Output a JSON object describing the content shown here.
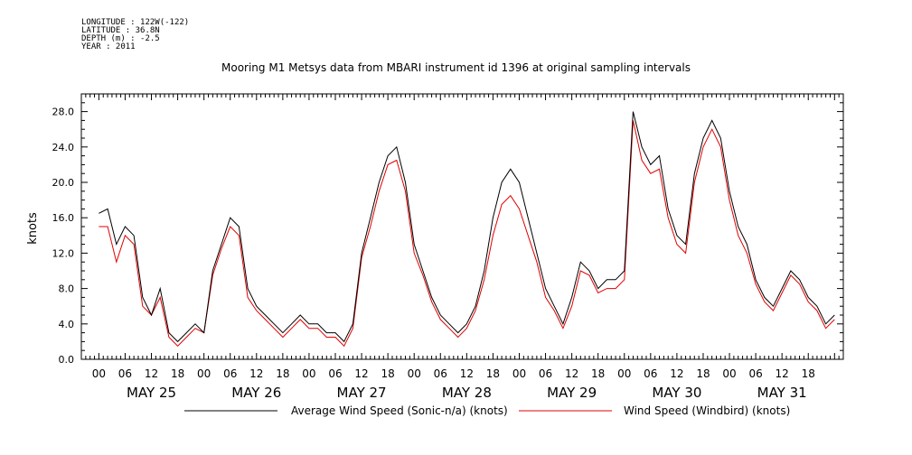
{
  "header": {
    "longitude": "LONGITUDE : 122W(-122)",
    "latitude": "LATITUDE : 36.8N",
    "depth": "DEPTH (m) : -2.5",
    "year": "YEAR : 2011",
    "title": "Mooring M1 Metsys data from MBARI instrument id 1396 at original sampling intervals"
  },
  "colors": {
    "series1": "#000000",
    "series2": "#e00000",
    "axis": "#000000"
  },
  "chart_data": {
    "type": "line",
    "title": "Mooring M1 Metsys data from MBARI instrument id 1396 at original sampling intervals",
    "ylabel": "knots",
    "xlabel": "",
    "ylim": [
      0,
      30
    ],
    "xlim_hours": [
      -4,
      170
    ],
    "grid": false,
    "legend": "bottom",
    "y_ticks": [
      "0.0",
      "4.0",
      "8.0",
      "12.0",
      "16.0",
      "20.0",
      "24.0",
      "28.0"
    ],
    "x_hour_labels": [
      "00",
      "06",
      "12",
      "18"
    ],
    "days": [
      "MAY 25",
      "MAY 26",
      "MAY 27",
      "MAY 28",
      "MAY 29",
      "MAY 30",
      "MAY 31"
    ],
    "series": [
      {
        "name": "Average Wind Speed (Sonic-n/a) (knots)",
        "points": [
          [
            0,
            16.5
          ],
          [
            2,
            17
          ],
          [
            4,
            13
          ],
          [
            6,
            15
          ],
          [
            8,
            14
          ],
          [
            10,
            7
          ],
          [
            12,
            5
          ],
          [
            14,
            8
          ],
          [
            16,
            3
          ],
          [
            18,
            2
          ],
          [
            20,
            3
          ],
          [
            22,
            4
          ],
          [
            24,
            3
          ],
          [
            26,
            10
          ],
          [
            28,
            13
          ],
          [
            30,
            16
          ],
          [
            32,
            15
          ],
          [
            34,
            8
          ],
          [
            36,
            6
          ],
          [
            38,
            5
          ],
          [
            40,
            4
          ],
          [
            42,
            3
          ],
          [
            44,
            4
          ],
          [
            46,
            5
          ],
          [
            48,
            4
          ],
          [
            50,
            4
          ],
          [
            52,
            3
          ],
          [
            54,
            3
          ],
          [
            56,
            2
          ],
          [
            58,
            4
          ],
          [
            60,
            12
          ],
          [
            62,
            16
          ],
          [
            64,
            20
          ],
          [
            66,
            23
          ],
          [
            68,
            24
          ],
          [
            70,
            20
          ],
          [
            72,
            13
          ],
          [
            74,
            10
          ],
          [
            76,
            7
          ],
          [
            78,
            5
          ],
          [
            80,
            4
          ],
          [
            82,
            3
          ],
          [
            84,
            4
          ],
          [
            86,
            6
          ],
          [
            88,
            10
          ],
          [
            90,
            16
          ],
          [
            92,
            20
          ],
          [
            94,
            21.5
          ],
          [
            96,
            20
          ],
          [
            98,
            16
          ],
          [
            100,
            12
          ],
          [
            102,
            8
          ],
          [
            104,
            6
          ],
          [
            106,
            4
          ],
          [
            108,
            7
          ],
          [
            110,
            11
          ],
          [
            112,
            10
          ],
          [
            114,
            8
          ],
          [
            116,
            9
          ],
          [
            118,
            9
          ],
          [
            120,
            10
          ],
          [
            122,
            28
          ],
          [
            124,
            24
          ],
          [
            126,
            22
          ],
          [
            128,
            23
          ],
          [
            130,
            17
          ],
          [
            132,
            14
          ],
          [
            134,
            13
          ],
          [
            136,
            21
          ],
          [
            138,
            25
          ],
          [
            140,
            27
          ],
          [
            142,
            25
          ],
          [
            144,
            19
          ],
          [
            146,
            15
          ],
          [
            148,
            13
          ],
          [
            150,
            9
          ],
          [
            152,
            7
          ],
          [
            154,
            6
          ],
          [
            156,
            8
          ],
          [
            158,
            10
          ],
          [
            160,
            9
          ],
          [
            162,
            7
          ],
          [
            164,
            6
          ],
          [
            166,
            4
          ],
          [
            168,
            5
          ]
        ]
      },
      {
        "name": "Wind Speed (Windbird) (knots)",
        "points": [
          [
            0,
            15
          ],
          [
            2,
            15
          ],
          [
            4,
            11
          ],
          [
            6,
            14
          ],
          [
            8,
            13
          ],
          [
            10,
            6
          ],
          [
            12,
            5
          ],
          [
            14,
            7
          ],
          [
            16,
            2.5
          ],
          [
            18,
            1.5
          ],
          [
            20,
            2.5
          ],
          [
            22,
            3.5
          ],
          [
            24,
            3
          ],
          [
            26,
            9.5
          ],
          [
            28,
            12.5
          ],
          [
            30,
            15
          ],
          [
            32,
            14
          ],
          [
            34,
            7
          ],
          [
            36,
            5.5
          ],
          [
            38,
            4.5
          ],
          [
            40,
            3.5
          ],
          [
            42,
            2.5
          ],
          [
            44,
            3.5
          ],
          [
            46,
            4.5
          ],
          [
            48,
            3.5
          ],
          [
            50,
            3.5
          ],
          [
            52,
            2.5
          ],
          [
            54,
            2.5
          ],
          [
            56,
            1.5
          ],
          [
            58,
            3.5
          ],
          [
            60,
            11.5
          ],
          [
            62,
            15
          ],
          [
            64,
            19
          ],
          [
            66,
            22
          ],
          [
            68,
            22.5
          ],
          [
            70,
            19
          ],
          [
            72,
            12
          ],
          [
            74,
            9.5
          ],
          [
            76,
            6.5
          ],
          [
            78,
            4.5
          ],
          [
            80,
            3.5
          ],
          [
            82,
            2.5
          ],
          [
            84,
            3.5
          ],
          [
            86,
            5.5
          ],
          [
            88,
            9
          ],
          [
            90,
            14
          ],
          [
            92,
            17.5
          ],
          [
            94,
            18.5
          ],
          [
            96,
            17
          ],
          [
            98,
            14
          ],
          [
            100,
            11
          ],
          [
            102,
            7
          ],
          [
            104,
            5.5
          ],
          [
            106,
            3.5
          ],
          [
            108,
            6
          ],
          [
            110,
            10
          ],
          [
            112,
            9.5
          ],
          [
            114,
            7.5
          ],
          [
            116,
            8
          ],
          [
            118,
            8
          ],
          [
            120,
            9
          ],
          [
            122,
            27
          ],
          [
            124,
            22.5
          ],
          [
            126,
            21
          ],
          [
            128,
            21.5
          ],
          [
            130,
            16
          ],
          [
            132,
            13
          ],
          [
            134,
            12
          ],
          [
            136,
            20
          ],
          [
            138,
            24
          ],
          [
            140,
            26
          ],
          [
            142,
            24
          ],
          [
            144,
            18
          ],
          [
            146,
            14
          ],
          [
            148,
            12
          ],
          [
            150,
            8.5
          ],
          [
            152,
            6.5
          ],
          [
            154,
            5.5
          ],
          [
            156,
            7.5
          ],
          [
            158,
            9.5
          ],
          [
            160,
            8.5
          ],
          [
            162,
            6.5
          ],
          [
            164,
            5.5
          ],
          [
            166,
            3.5
          ],
          [
            168,
            4.5
          ]
        ]
      }
    ]
  }
}
